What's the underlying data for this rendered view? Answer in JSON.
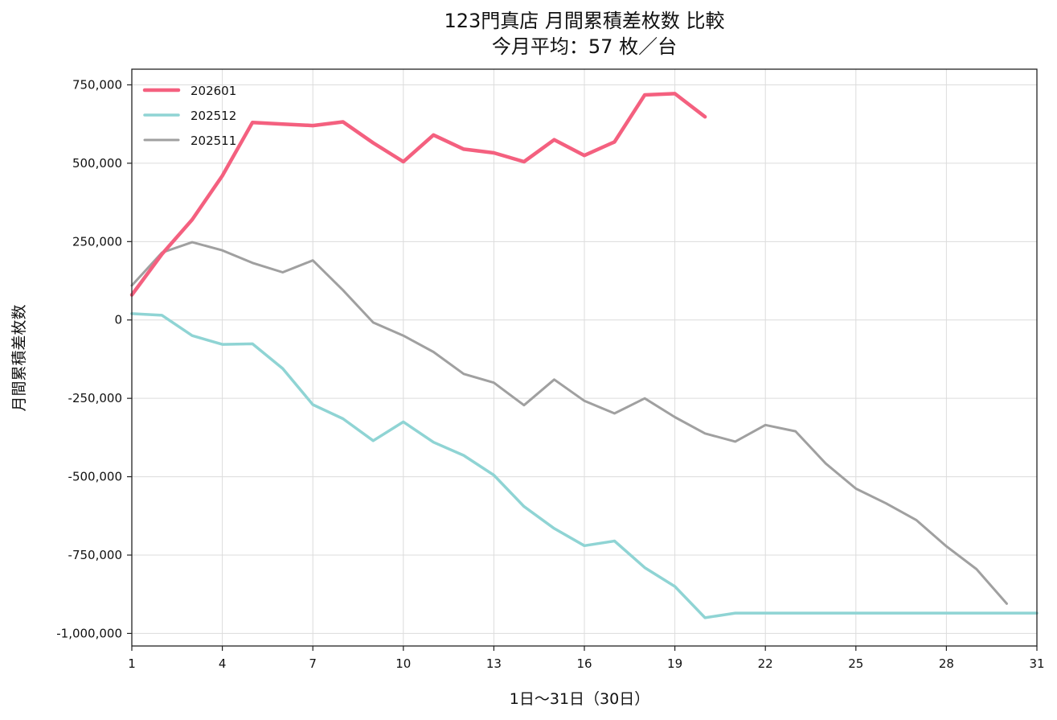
{
  "chart_data": {
    "type": "line",
    "title": "123門真店 月間累積差枚数 比較",
    "subtitle": "今月平均：57 枚／台",
    "xlabel": "1日〜31日（30日）",
    "ylabel": "月間累積差枚数",
    "xlim": [
      1,
      31
    ],
    "ylim": [
      -1040000,
      800000
    ],
    "xticks": [
      1,
      4,
      7,
      10,
      13,
      16,
      19,
      22,
      25,
      28,
      31
    ],
    "xtick_labels": [
      "1",
      "4",
      "7",
      "10",
      "13",
      "16",
      "19",
      "22",
      "25",
      "28",
      "31"
    ],
    "yticks": [
      750000,
      500000,
      250000,
      0,
      -250000,
      -500000,
      -750000,
      -1000000
    ],
    "ytick_labels": [
      "750,000",
      "500,000",
      "250,000",
      "0",
      "-250,000",
      "-500,000",
      "-750,000",
      "-1,000,000"
    ],
    "grid": true,
    "legend_position": "top-left",
    "series": [
      {
        "name": "202601",
        "color": "#f4607f",
        "x": [
          1,
          2,
          3,
          4,
          5,
          6,
          7,
          8,
          9,
          10,
          11,
          12,
          13,
          14,
          15,
          16,
          17,
          18,
          19,
          20
        ],
        "values": [
          80000,
          210000,
          320000,
          460000,
          630000,
          625000,
          620000,
          632000,
          565000,
          505000,
          590000,
          545000,
          533000,
          505000,
          575000,
          525000,
          568000,
          718000,
          722000,
          648000
        ]
      },
      {
        "name": "202512",
        "color": "#8fd4d4",
        "x": [
          1,
          2,
          3,
          4,
          5,
          6,
          7,
          8,
          9,
          10,
          11,
          12,
          13,
          14,
          15,
          16,
          17,
          18,
          19,
          20,
          21,
          22,
          23,
          24,
          25,
          26,
          27,
          28,
          29,
          30,
          31
        ],
        "values": [
          20000,
          15000,
          -50000,
          -78000,
          -76000,
          -155000,
          -270000,
          -315000,
          -385000,
          -325000,
          -390000,
          -432000,
          -495000,
          -595000,
          -665000,
          -720000,
          -705000,
          -790000,
          -850000,
          -950000,
          -935000,
          -935000,
          -935000,
          -935000,
          -935000,
          -935000,
          -935000,
          -935000,
          -935000,
          -935000,
          -935000
        ]
      },
      {
        "name": "202511",
        "color": "#a0a0a0",
        "x": [
          1,
          2,
          3,
          4,
          5,
          6,
          7,
          8,
          9,
          10,
          11,
          12,
          13,
          14,
          15,
          16,
          17,
          18,
          19,
          20,
          21,
          22,
          23,
          24,
          25,
          26,
          27,
          28,
          29,
          30
        ],
        "values": [
          110000,
          215000,
          248000,
          222000,
          182000,
          152000,
          190000,
          95000,
          -8000,
          -50000,
          -102000,
          -172000,
          -200000,
          -272000,
          -190000,
          -258000,
          -298000,
          -250000,
          -310000,
          -362000,
          -388000,
          -335000,
          -355000,
          -458000,
          -538000,
          -585000,
          -638000,
          -722000,
          -795000,
          -905000
        ]
      }
    ]
  }
}
